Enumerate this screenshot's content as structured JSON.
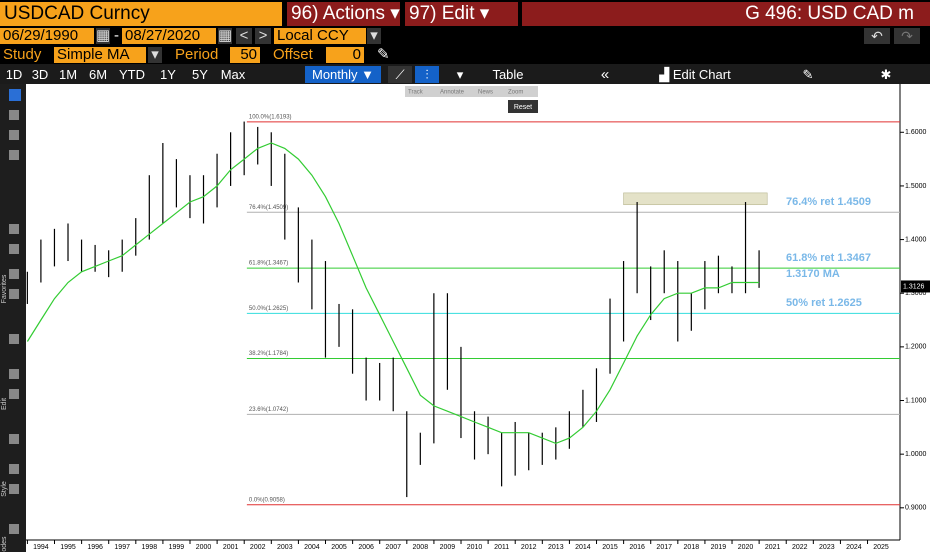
{
  "toolbar": {
    "security": "USDCAD Curncy",
    "actions": "96) Actions",
    "edit": "97) Edit",
    "title": "G 496: USD CAD m"
  },
  "controls": {
    "start_date": "06/29/1990",
    "end_date": "08/27/2020",
    "currency": "Local CCY",
    "study_label": "Study",
    "study": "Simple MA",
    "period_label": "Period",
    "period": 50,
    "offset_label": "Offset",
    "offset": 0
  },
  "ranges": [
    "1D",
    "3D",
    "1M",
    "6M",
    "YTD",
    "1Y",
    "5Y",
    "Max"
  ],
  "frequency": "Monthly",
  "table": "Table",
  "edit_chart": "Edit Chart",
  "overlay": [
    "Track",
    "Annotate",
    "News",
    "Zoom"
  ],
  "reset": "Reset",
  "side_labels": [
    "Favorites",
    "Edit",
    "Style",
    "Modes"
  ],
  "chart_data": {
    "type": "hilo",
    "x": [
      1993.5,
      1994,
      1994.5,
      1995,
      1995.5,
      1996,
      1996.5,
      1997,
      1997.5,
      1998,
      1998.5,
      1999,
      1999.5,
      2000,
      2000.5,
      2001,
      2001.5,
      2002,
      2002.5,
      2003,
      2003.5,
      2004,
      2004.5,
      2005,
      2005.5,
      2006,
      2006.5,
      2007,
      2007.5,
      2008,
      2008.5,
      2009,
      2009.5,
      2010,
      2010.5,
      2011,
      2011.5,
      2012,
      2012.5,
      2013,
      2013.5,
      2014,
      2014.5,
      2015,
      2015.5,
      2016,
      2016.5,
      2017,
      2017.5,
      2018,
      2018.5,
      2019,
      2019.5,
      2020,
      2020.5
    ],
    "series": [
      {
        "color": "#000000",
        "high": [
          1.34,
          1.4,
          1.42,
          1.43,
          1.4,
          1.39,
          1.38,
          1.4,
          1.44,
          1.52,
          1.58,
          1.55,
          1.52,
          1.52,
          1.56,
          1.6,
          1.62,
          1.61,
          1.6,
          1.56,
          1.46,
          1.4,
          1.36,
          1.28,
          1.27,
          1.18,
          1.17,
          1.18,
          1.08,
          1.04,
          1.3,
          1.3,
          1.2,
          1.08,
          1.07,
          1.04,
          1.06,
          1.04,
          1.04,
          1.05,
          1.08,
          1.12,
          1.16,
          1.29,
          1.36,
          1.47,
          1.35,
          1.38,
          1.36,
          1.3,
          1.36,
          1.37,
          1.35,
          1.47,
          1.38
        ],
        "low": [
          1.28,
          1.32,
          1.35,
          1.36,
          1.34,
          1.34,
          1.33,
          1.34,
          1.37,
          1.4,
          1.43,
          1.46,
          1.44,
          1.43,
          1.46,
          1.5,
          1.52,
          1.54,
          1.5,
          1.4,
          1.32,
          1.27,
          1.18,
          1.2,
          1.15,
          1.1,
          1.1,
          1.08,
          0.92,
          0.98,
          1.02,
          1.12,
          1.03,
          0.99,
          1.0,
          0.94,
          0.96,
          0.97,
          0.98,
          0.99,
          1.01,
          1.05,
          1.06,
          1.15,
          1.21,
          1.3,
          1.25,
          1.3,
          1.21,
          1.23,
          1.27,
          1.3,
          1.3,
          1.3,
          1.31
        ]
      },
      {
        "color": "#33cc33",
        "values": [
          1.21,
          1.25,
          1.29,
          1.32,
          1.34,
          1.35,
          1.36,
          1.37,
          1.39,
          1.41,
          1.43,
          1.45,
          1.47,
          1.48,
          1.5,
          1.53,
          1.55,
          1.57,
          1.58,
          1.57,
          1.55,
          1.52,
          1.48,
          1.43,
          1.37,
          1.31,
          1.26,
          1.21,
          1.16,
          1.11,
          1.09,
          1.08,
          1.07,
          1.06,
          1.05,
          1.04,
          1.04,
          1.04,
          1.03,
          1.02,
          1.03,
          1.05,
          1.08,
          1.12,
          1.17,
          1.22,
          1.26,
          1.29,
          1.3,
          1.3,
          1.31,
          1.31,
          1.32,
          1.32,
          1.32
        ]
      }
    ],
    "levels_start": 2001.6,
    "levels": [
      {
        "label": "100.0%(1.6193)",
        "value": 1.6193,
        "color": "#e03030"
      },
      {
        "label": "76.4%(1.4509)",
        "value": 1.4509,
        "color": "#b0b0b0"
      },
      {
        "label": "61.8%(1.3467)",
        "value": 1.3467,
        "color": "#33cc33"
      },
      {
        "label": "50.0%(1.2625)",
        "value": 1.2625,
        "color": "#33dddd"
      },
      {
        "label": "38.2%(1.1784)",
        "value": 1.1784,
        "color": "#33cc33"
      },
      {
        "label": "23.6%(1.0742)",
        "value": 1.0742,
        "color": "#b0b0b0"
      },
      {
        "label": "0.0%(0.9058)",
        "value": 0.9058,
        "color": "#e03030"
      }
    ],
    "annotations": [
      {
        "text": "76.4% ret 1.4509",
        "value": 1.4509
      },
      {
        "text": "61.8% ret 1.3467",
        "value": 1.3467
      },
      {
        "text": "1.3170 MA",
        "value": 1.317
      },
      {
        "text": "50% ret 1.2625",
        "value": 1.2625
      }
    ],
    "annotation_color": "#7ab8e8",
    "highlight": {
      "x": [
        2015.5,
        2020.8
      ],
      "y": [
        1.465,
        1.487
      ],
      "color": "#e4e2c8"
    },
    "last_price": 1.3126,
    "xlim": [
      1993.45,
      2025.7
    ],
    "xticks": [
      1994,
      1995,
      1996,
      1997,
      1998,
      1999,
      2000,
      2001,
      2002,
      2003,
      2004,
      2005,
      2006,
      2007,
      2008,
      2009,
      2010,
      2011,
      2012,
      2013,
      2014,
      2015,
      2016,
      2017,
      2018,
      2019,
      2020,
      2021,
      2022,
      2023,
      2024,
      2025
    ],
    "ylim": [
      0.84,
      1.69
    ],
    "yticks": [
      {
        "value": 0.9,
        "label": "0.9000"
      },
      {
        "value": 1.0,
        "label": "1.0000"
      },
      {
        "value": 1.1,
        "label": "1.1000"
      },
      {
        "value": 1.2,
        "label": "1.2000"
      },
      {
        "value": 1.3,
        "label": "1.3000"
      },
      {
        "value": 1.4,
        "label": "1.4000"
      },
      {
        "value": 1.5,
        "label": "1.5000"
      },
      {
        "value": 1.6,
        "label": "1.6000"
      }
    ]
  }
}
